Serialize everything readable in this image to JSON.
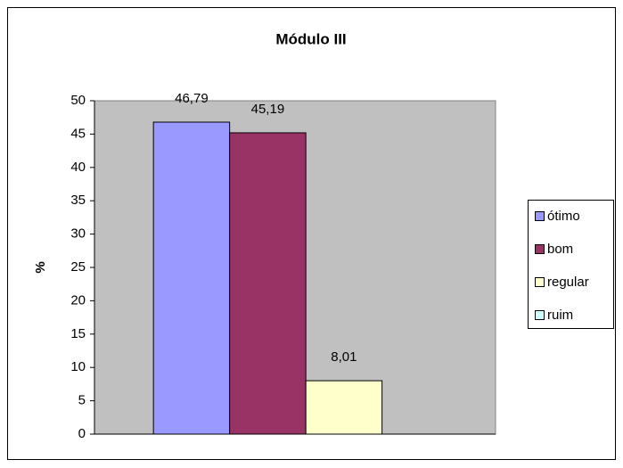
{
  "chart_data": {
    "type": "bar",
    "title": "Módulo III",
    "y_label": "%",
    "categories": [
      null
    ],
    "series": [
      {
        "name": "ótimo",
        "color": "#9999ff",
        "values": [
          46.79
        ],
        "value_labels": [
          "46,79"
        ]
      },
      {
        "name": "bom",
        "color": "#993366",
        "values": [
          45.19
        ],
        "value_labels": [
          "45,19"
        ]
      },
      {
        "name": "regular",
        "color": "#ffffcc",
        "values": [
          8.01
        ],
        "value_labels": [
          "8,01"
        ]
      },
      {
        "name": "ruim",
        "color": "#ccffff",
        "values": [
          0
        ]
      }
    ],
    "ylim": [
      0,
      50
    ],
    "yticks": [
      0,
      5,
      10,
      15,
      20,
      25,
      30,
      35,
      40,
      45,
      50
    ],
    "grid": false,
    "legend": "right",
    "plot_background": "#c0c0c0"
  }
}
